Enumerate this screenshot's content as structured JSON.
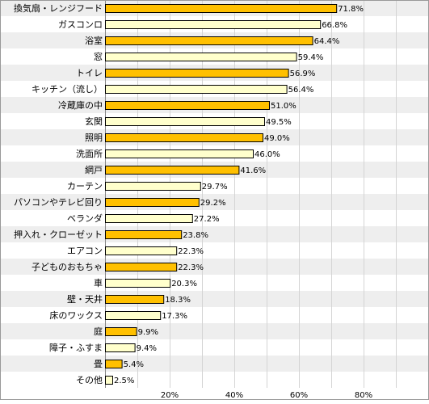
{
  "colors": {
    "bar_accent": "#FFC000",
    "bar_light": "#FFFFCC",
    "bar_stroke": "#000000",
    "row_shade": "#EEEEEE",
    "grid": "#D4D4D4",
    "border": "#999999"
  },
  "chart_data": {
    "type": "bar",
    "orientation": "horizontal",
    "title": "",
    "xlabel": "",
    "ylabel": "",
    "xlim": [
      0,
      100
    ],
    "x_ticks": [
      20,
      40,
      60,
      80
    ],
    "x_tick_labels": [
      "20%",
      "40%",
      "60%",
      "80%"
    ],
    "grid": true,
    "categories": [
      "換気扇・レンジフード",
      "ガスコンロ",
      "浴室",
      "窓",
      "トイレ",
      "キッチン（流し）",
      "冷蔵庫の中",
      "玄関",
      "照明",
      "洗面所",
      "網戸",
      "カーテン",
      "パソコンやテレビ回り",
      "ベランダ",
      "押入れ・クローゼット",
      "エアコン",
      "子どものおもちゃ",
      "車",
      "壁・天井",
      "床のワックス",
      "庭",
      "障子・ふすま",
      "畳",
      "その他"
    ],
    "values": [
      71.8,
      66.8,
      64.4,
      59.4,
      56.9,
      56.4,
      51.0,
      49.5,
      49.0,
      46.0,
      41.6,
      29.7,
      29.2,
      27.2,
      23.8,
      22.3,
      22.3,
      20.3,
      18.3,
      17.3,
      9.9,
      9.4,
      5.4,
      2.5
    ],
    "value_labels": [
      "71.8%",
      "66.8%",
      "64.4%",
      "59.4%",
      "56.9%",
      "56.4%",
      "51.0%",
      "49.5%",
      "49.0%",
      "46.0%",
      "41.6%",
      "29.7%",
      "29.2%",
      "27.2%",
      "23.8%",
      "22.3%",
      "22.3%",
      "20.3%",
      "18.3%",
      "17.3%",
      "9.9%",
      "9.4%",
      "5.4%",
      "2.5%"
    ],
    "highlighted": [
      true,
      false,
      true,
      false,
      true,
      false,
      true,
      false,
      true,
      false,
      true,
      false,
      true,
      false,
      true,
      false,
      true,
      false,
      true,
      false,
      true,
      false,
      true,
      false
    ]
  }
}
